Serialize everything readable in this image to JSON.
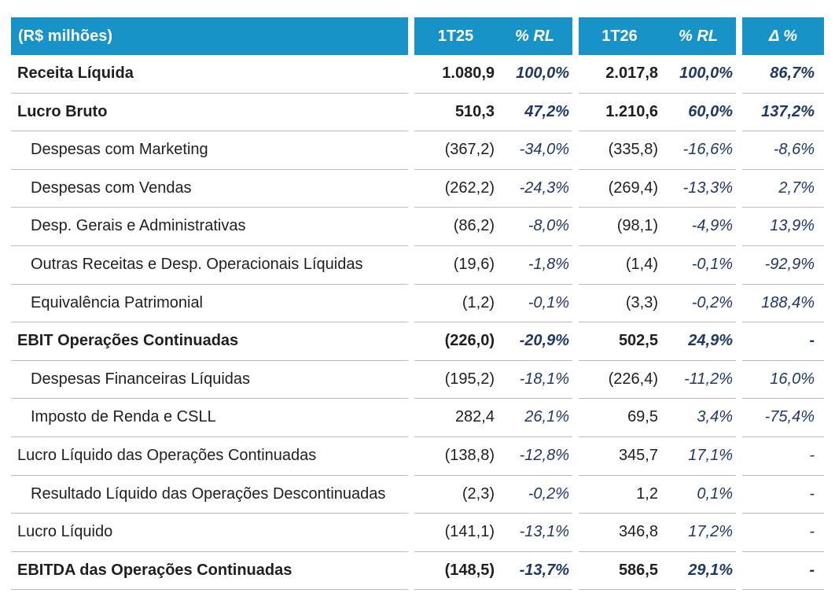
{
  "table": {
    "unit_label": "(R$ milhões)",
    "header": {
      "col_v1": "1T25",
      "col_p1": "% RL",
      "col_v2": "1T26",
      "col_p2": "% RL",
      "col_delta": "Δ %"
    },
    "colors": {
      "header_bg": "#1793C8",
      "header_text": "#FFFFFF",
      "percent_text": "#1F3864",
      "value_text": "#1F1F1F",
      "divider": "#BDBDBD"
    },
    "rows": [
      {
        "label": "Receita Líquida",
        "bold": true,
        "indent": false,
        "v1": "1.080,9",
        "p1": "100,0%",
        "v2": "2.017,8",
        "p2": "100,0%",
        "delta": "86,7%"
      },
      {
        "label": "Lucro Bruto",
        "bold": true,
        "indent": false,
        "v1": "510,3",
        "p1": "47,2%",
        "v2": "1.210,6",
        "p2": "60,0%",
        "delta": "137,2%"
      },
      {
        "label": "Despesas com Marketing",
        "bold": false,
        "indent": true,
        "v1": "(367,2)",
        "p1": "-34,0%",
        "v2": "(335,8)",
        "p2": "-16,6%",
        "delta": "-8,6%"
      },
      {
        "label": "Despesas com Vendas",
        "bold": false,
        "indent": true,
        "v1": "(262,2)",
        "p1": "-24,3%",
        "v2": "(269,4)",
        "p2": "-13,3%",
        "delta": "2,7%"
      },
      {
        "label": "Desp. Gerais e Administrativas",
        "bold": false,
        "indent": true,
        "v1": "(86,2)",
        "p1": "-8,0%",
        "v2": "(98,1)",
        "p2": "-4,9%",
        "delta": "13,9%"
      },
      {
        "label": "Outras Receitas e Desp. Operacionais Líquidas",
        "bold": false,
        "indent": true,
        "v1": "(19,6)",
        "p1": "-1,8%",
        "v2": "(1,4)",
        "p2": "-0,1%",
        "delta": "-92,9%"
      },
      {
        "label": "Equivalência Patrimonial",
        "bold": false,
        "indent": true,
        "v1": "(1,2)",
        "p1": "-0,1%",
        "v2": "(3,3)",
        "p2": "-0,2%",
        "delta": "188,4%"
      },
      {
        "label": "EBIT Operações Continuadas",
        "bold": true,
        "indent": false,
        "v1": "(226,0)",
        "p1": "-20,9%",
        "v2": "502,5",
        "p2": "24,9%",
        "delta": "-"
      },
      {
        "label": "Despesas Financeiras Líquidas",
        "bold": false,
        "indent": true,
        "v1": "(195,2)",
        "p1": "-18,1%",
        "v2": "(226,4)",
        "p2": "-11,2%",
        "delta": "16,0%"
      },
      {
        "label": "Imposto de Renda e CSLL",
        "bold": false,
        "indent": true,
        "v1": "282,4",
        "p1": "26,1%",
        "v2": "69,5",
        "p2": "3,4%",
        "delta": "-75,4%"
      },
      {
        "label": "Lucro Líquido das Operações Continuadas",
        "bold": false,
        "indent": false,
        "v1": "(138,8)",
        "p1": "-12,8%",
        "v2": "345,7",
        "p2": "17,1%",
        "delta": "-"
      },
      {
        "label": "Resultado Líquido das Operações Descontinuadas",
        "bold": false,
        "indent": true,
        "v1": "(2,3)",
        "p1": "-0,2%",
        "v2": "1,2",
        "p2": "0,1%",
        "delta": "-"
      },
      {
        "label": "Lucro Líquido",
        "bold": false,
        "indent": false,
        "v1": "(141,1)",
        "p1": "-13,1%",
        "v2": "346,8",
        "p2": "17,2%",
        "delta": "-"
      },
      {
        "label": "EBITDA das Operações Continuadas",
        "bold": true,
        "indent": false,
        "v1": "(148,5)",
        "p1": "-13,7%",
        "v2": "586,5",
        "p2": "29,1%",
        "delta": "-"
      }
    ]
  }
}
